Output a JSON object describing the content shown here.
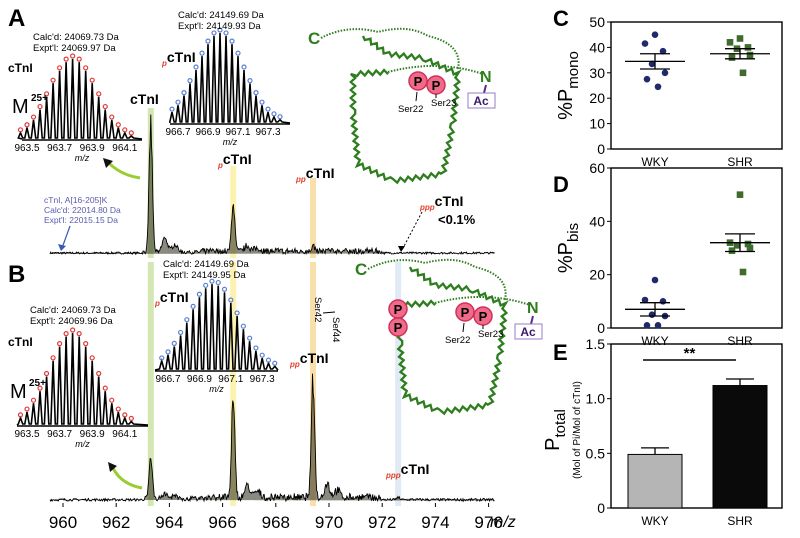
{
  "chart_data": [
    {
      "panel": "A",
      "type": "line",
      "title": "",
      "xlabel": "m/z",
      "xlim": [
        958,
        978
      ],
      "peaks": [
        {
          "label": "cTnI",
          "prefix": "",
          "mz": 963.3,
          "intensity": 100
        },
        {
          "label": "cTnI",
          "prefix": "p",
          "mz": 966.4,
          "intensity": 38
        },
        {
          "label": "cTnI",
          "prefix": "pp",
          "mz": 969.4,
          "intensity": 4
        },
        {
          "label": "cTnI",
          "prefix": "ppp",
          "mz": 972.6,
          "intensity": 0.1,
          "note": "<0.1%"
        }
      ],
      "truncated": {
        "lines": [
          "cTnI, A[16-205]K",
          "Calc'd: 22014.80 Da",
          "Expt'l:  22015.15 Da"
        ],
        "mz": 959.0
      },
      "insets": [
        {
          "species": "cTnI",
          "charge_base": "M",
          "charge": "25+",
          "calc": "Calc'd: 24069.73 Da",
          "expt": "Expt'l:  24069.97 Da",
          "ticks": [
            "963.5",
            "963.7",
            "963.9",
            "964.1"
          ],
          "xlabel": "m/z",
          "marker_color": "#e03a3a"
        },
        {
          "species": "cTnI",
          "prefix": "p",
          "calc": "Calc'd: 24149.69 Da",
          "expt": "Expt'l:  24149.93 Da",
          "ticks": [
            "966.7",
            "966.9",
            "967.1",
            "967.3"
          ],
          "xlabel": "m/z",
          "marker_color": "#5b7fd0"
        }
      ]
    },
    {
      "panel": "B",
      "type": "line",
      "xlabel": "m/z",
      "xlim": [
        958,
        978
      ],
      "xticks": [
        "960",
        "962",
        "964",
        "966",
        "968",
        "970",
        "972",
        "974",
        "976"
      ],
      "peaks": [
        {
          "label": "cTnI",
          "prefix": "",
          "mz": 963.3,
          "intensity": 35
        },
        {
          "label": "cTnI",
          "prefix": "p",
          "mz": 966.4,
          "intensity": 83
        },
        {
          "label": "cTnI",
          "prefix": "pp",
          "mz": 969.4,
          "intensity": 100
        },
        {
          "label": "cTnI",
          "prefix": "ppp",
          "mz": 972.6,
          "intensity": 2
        }
      ],
      "insets": [
        {
          "species": "cTnI",
          "charge_base": "M",
          "charge": "25+",
          "calc": "Calc'd: 24069.73 Da",
          "expt": "Expt'l:  24069.96 Da",
          "ticks": [
            "963.5",
            "963.7",
            "963.9",
            "964.1"
          ],
          "xlabel": "m/z",
          "marker_color": "#e03a3a"
        },
        {
          "species": "cTnI",
          "prefix": "p",
          "calc": "Calc'd: 24149.69 Da",
          "expt": "Expt'l:  24149.95 Da",
          "ticks": [
            "966.7",
            "966.9",
            "967.1",
            "967.3"
          ],
          "xlabel": "m/z",
          "marker_color": "#5b7fd0"
        }
      ]
    },
    {
      "panel": "C",
      "type": "scatter",
      "ylabel": "%P",
      "ylabel_sub": "mono",
      "ylim": [
        0,
        50
      ],
      "yticks": [
        "0",
        "10",
        "20",
        "30",
        "40",
        "50"
      ],
      "categories": [
        "WKY",
        "SHR"
      ],
      "series": [
        {
          "name": "WKY",
          "color": "#1f2a6b",
          "values": [
            45,
            41.5,
            38.5,
            33.5,
            30,
            27.5,
            24.5
          ],
          "mean": 34.5,
          "sem": 3
        },
        {
          "name": "SHR",
          "color": "#3f6b2f",
          "values": [
            43.5,
            42,
            40,
            39.5,
            37,
            36,
            30
          ],
          "mean": 37.5,
          "sem": 2
        }
      ]
    },
    {
      "panel": "D",
      "type": "scatter",
      "ylabel": "%P",
      "ylabel_sub": "bis",
      "ylim": [
        0,
        60
      ],
      "yticks": [
        "0",
        "20",
        "40",
        "60"
      ],
      "categories": [
        "WKY",
        "SHR"
      ],
      "series": [
        {
          "name": "WKY",
          "color": "#1f2a6b",
          "values": [
            18,
            10.5,
            10,
            5,
            4.5,
            1,
            1
          ],
          "mean": 7,
          "sem": 2.5
        },
        {
          "name": "SHR",
          "color": "#3f6b2f",
          "values": [
            50,
            32,
            31.5,
            31,
            30,
            29,
            21
          ],
          "mean": 32,
          "sem": 3.3
        }
      ]
    },
    {
      "panel": "E",
      "type": "bar",
      "ylabel": "P",
      "ylabel_sub": "total",
      "ylabel2": "(Mol of Pi/Mol of cTnI)",
      "ylim": [
        0,
        1.5
      ],
      "yticks": [
        "0",
        "0.5",
        "1.0",
        "1.5"
      ],
      "categories": [
        "WKY",
        "SHR"
      ],
      "values": [
        0.49,
        1.12
      ],
      "errors": [
        0.06,
        0.06
      ],
      "colors": [
        "#b5b5b5",
        "#0a0a0a"
      ],
      "significance": "**"
    }
  ],
  "diagram": {
    "c_term": "C",
    "n_term": "N",
    "acetyl": "Ac",
    "phospho": "P",
    "sites_a": [
      "Ser22",
      "Ser23"
    ],
    "sites_b": [
      "Ser42",
      "Ser44",
      "Ser22",
      "Ser23"
    ]
  }
}
